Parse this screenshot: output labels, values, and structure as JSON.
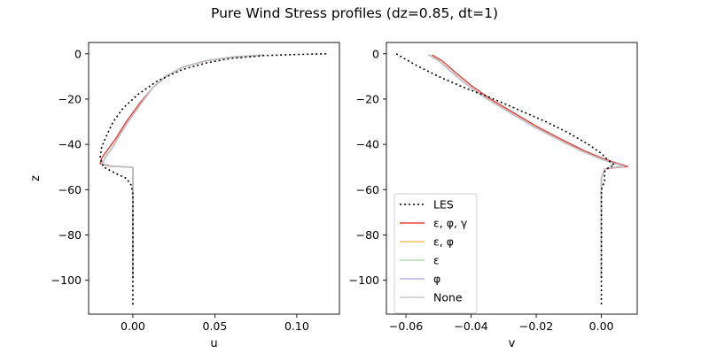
{
  "figure": {
    "title": "Pure Wind Stress profiles (dz=0.85, dt=1)"
  },
  "series_styles": [
    {
      "name": "LES",
      "color": "#000000",
      "dash": "2,3",
      "width": 1.6,
      "opacity": 1
    },
    {
      "name": "ε, φ, γ",
      "color": "#e8302a",
      "dash": "",
      "width": 1.5,
      "opacity": 0.9
    },
    {
      "name": "ε, φ",
      "color": "#f5a623",
      "dash": "",
      "width": 1.5,
      "opacity": 0.7
    },
    {
      "name": "ε",
      "color": "#7bc47b",
      "dash": "",
      "width": 1.5,
      "opacity": 0.6
    },
    {
      "name": "φ",
      "color": "#9b8fd8",
      "dash": "",
      "width": 1.5,
      "opacity": 0.7
    },
    {
      "name": "None",
      "color": "#c8c8c8",
      "dash": "",
      "width": 1.8,
      "opacity": 0.8
    }
  ],
  "chart_data": [
    {
      "type": "line",
      "title": "",
      "xlabel": "u",
      "ylabel": "z",
      "xlim": [
        -0.027,
        0.126
      ],
      "ylim": [
        -115,
        5
      ],
      "xticks": [
        0.0,
        0.05,
        0.1
      ],
      "xtick_labels": [
        "0.00",
        "0.05",
        "0.10"
      ],
      "yticks": [
        0,
        -20,
        -40,
        -60,
        -80,
        -100
      ],
      "ytick_labels": [
        "0",
        "−20",
        "−40",
        "−60",
        "−80",
        "−100"
      ],
      "legend": null,
      "series": [
        {
          "name": "LES",
          "points": [
            [
              0.118,
              0
            ],
            [
              0.1,
              -0.3
            ],
            [
              0.08,
              -0.8
            ],
            [
              0.06,
              -2
            ],
            [
              0.045,
              -4
            ],
            [
              0.03,
              -7
            ],
            [
              0.015,
              -12
            ],
            [
              0.003,
              -18
            ],
            [
              -0.006,
              -24
            ],
            [
              -0.012,
              -30
            ],
            [
              -0.016,
              -36
            ],
            [
              -0.019,
              -41
            ],
            [
              -0.02,
              -46
            ],
            [
              -0.018,
              -50
            ],
            [
              -0.01,
              -53
            ],
            [
              -0.004,
              -55
            ],
            [
              -0.001,
              -58
            ],
            [
              0,
              -62
            ],
            [
              0,
              -80
            ],
            [
              0,
              -100
            ],
            [
              0,
              -111
            ]
          ]
        },
        {
          "name": "ε, φ, γ",
          "points": [
            [
              0.08,
              -0.5
            ],
            [
              0.06,
              -1.5
            ],
            [
              0.045,
              -3
            ],
            [
              0.03,
              -6
            ],
            [
              0.02,
              -10
            ],
            [
              0.012,
              -15
            ],
            [
              0.004,
              -22
            ],
            [
              -0.004,
              -30
            ],
            [
              -0.01,
              -37
            ],
            [
              -0.015,
              -42
            ],
            [
              -0.019,
              -46
            ],
            [
              -0.02,
              -48.5
            ],
            [
              -0.014,
              -49.6
            ],
            [
              -0.003,
              -50
            ],
            [
              0,
              -50.2
            ],
            [
              0,
              -70
            ],
            [
              0,
              -99
            ]
          ]
        },
        {
          "name": "ε, φ",
          "points": [
            [
              0.08,
              -0.5
            ],
            [
              0.06,
              -1.5
            ],
            [
              0.045,
              -3
            ],
            [
              0.03,
              -6
            ],
            [
              0.02,
              -10
            ],
            [
              0.012,
              -15
            ],
            [
              0.005,
              -22
            ],
            [
              -0.003,
              -30
            ],
            [
              -0.009,
              -37
            ],
            [
              -0.013,
              -42
            ],
            [
              -0.017,
              -46
            ],
            [
              -0.019,
              -48.5
            ],
            [
              -0.013,
              -49.6
            ],
            [
              -0.003,
              -50
            ],
            [
              0,
              -50.2
            ],
            [
              0,
              -70
            ],
            [
              0,
              -99
            ]
          ]
        },
        {
          "name": "ε",
          "points": [
            [
              0.08,
              -0.5
            ],
            [
              0.06,
              -1.5
            ],
            [
              0.045,
              -3
            ],
            [
              0.03,
              -6
            ],
            [
              0.02,
              -10
            ],
            [
              0.012,
              -15
            ],
            [
              0.005,
              -22
            ],
            [
              -0.003,
              -30
            ],
            [
              -0.009,
              -37
            ],
            [
              -0.013,
              -42
            ],
            [
              -0.017,
              -46
            ],
            [
              -0.019,
              -48.5
            ],
            [
              -0.013,
              -49.6
            ],
            [
              -0.003,
              -50
            ],
            [
              0,
              -50.2
            ],
            [
              0,
              -70
            ],
            [
              0,
              -99
            ]
          ]
        },
        {
          "name": "φ",
          "points": [
            [
              0.08,
              -0.5
            ],
            [
              0.06,
              -1.5
            ],
            [
              0.045,
              -3
            ],
            [
              0.03,
              -6
            ],
            [
              0.02,
              -10
            ],
            [
              0.012,
              -15
            ],
            [
              0.005,
              -22
            ],
            [
              -0.003,
              -30
            ],
            [
              -0.009,
              -37
            ],
            [
              -0.013,
              -42
            ],
            [
              -0.017,
              -46
            ],
            [
              -0.019,
              -48.5
            ],
            [
              -0.013,
              -49.6
            ],
            [
              -0.003,
              -50
            ],
            [
              0,
              -50.2
            ],
            [
              0,
              -70
            ],
            [
              0,
              -99
            ]
          ]
        },
        {
          "name": "None",
          "points": [
            [
              0.08,
              -0.5
            ],
            [
              0.06,
              -1.5
            ],
            [
              0.045,
              -3
            ],
            [
              0.03,
              -6
            ],
            [
              0.02,
              -10
            ],
            [
              0.012,
              -15
            ],
            [
              0.005,
              -22
            ],
            [
              -0.003,
              -30
            ],
            [
              -0.009,
              -37
            ],
            [
              -0.013,
              -42
            ],
            [
              -0.017,
              -46
            ],
            [
              -0.019,
              -48.5
            ],
            [
              -0.013,
              -49.6
            ],
            [
              -0.003,
              -50
            ],
            [
              0,
              -50.2
            ],
            [
              0,
              -70
            ],
            [
              0,
              -99
            ]
          ]
        }
      ]
    },
    {
      "type": "line",
      "title": "",
      "xlabel": "v",
      "ylabel": "",
      "xlim": [
        -0.066,
        0.011
      ],
      "ylim": [
        -115,
        5
      ],
      "xticks": [
        -0.06,
        -0.04,
        -0.02,
        0.0
      ],
      "xtick_labels": [
        "−0.06",
        "−0.04",
        "−0.02",
        "0.00"
      ],
      "yticks": [
        0,
        -20,
        -40,
        -60,
        -80,
        -100
      ],
      "ytick_labels": [
        "0",
        "−20",
        "−40",
        "−60",
        "−80",
        "−100"
      ],
      "legend": "lower-left",
      "series": [
        {
          "name": "LES",
          "points": [
            [
              -0.063,
              0
            ],
            [
              -0.057,
              -5
            ],
            [
              -0.05,
              -10
            ],
            [
              -0.042,
              -15
            ],
            [
              -0.033,
              -20
            ],
            [
              -0.025,
              -25
            ],
            [
              -0.017,
              -30
            ],
            [
              -0.01,
              -35
            ],
            [
              -0.004,
              -40
            ],
            [
              0,
              -44
            ],
            [
              0.002,
              -47
            ],
            [
              0.004,
              -49
            ],
            [
              0.002,
              -50.5
            ],
            [
              0.001,
              -52
            ],
            [
              0.001,
              -56
            ],
            [
              0,
              -60
            ],
            [
              0,
              -80
            ],
            [
              0,
              -100
            ],
            [
              0,
              -111
            ]
          ]
        },
        {
          "name": "ε, φ, γ",
          "points": [
            [
              -0.052,
              -0.5
            ],
            [
              -0.049,
              -3
            ],
            [
              -0.045,
              -8
            ],
            [
              -0.04,
              -14
            ],
            [
              -0.034,
              -20
            ],
            [
              -0.027,
              -26
            ],
            [
              -0.02,
              -32
            ],
            [
              -0.012,
              -38
            ],
            [
              -0.005,
              -43
            ],
            [
              0,
              -46
            ],
            [
              0.004,
              -48
            ],
            [
              0.007,
              -49.3
            ],
            [
              0.008,
              -49.8
            ],
            [
              0.004,
              -50.3
            ],
            [
              0.001,
              -51
            ],
            [
              0,
              -55
            ],
            [
              0,
              -99
            ]
          ]
        },
        {
          "name": "ε, φ",
          "points": [
            [
              -0.053,
              -0.5
            ],
            [
              -0.05,
              -3
            ],
            [
              -0.046,
              -8
            ],
            [
              -0.041,
              -14
            ],
            [
              -0.035,
              -20
            ],
            [
              -0.028,
              -26
            ],
            [
              -0.021,
              -32
            ],
            [
              -0.013,
              -38
            ],
            [
              -0.006,
              -43
            ],
            [
              -0.001,
              -46
            ],
            [
              0.003,
              -48
            ],
            [
              0.006,
              -49.3
            ],
            [
              0.007,
              -49.8
            ],
            [
              0.003,
              -50.3
            ],
            [
              0.001,
              -51
            ],
            [
              0,
              -55
            ],
            [
              0,
              -99
            ]
          ]
        },
        {
          "name": "ε",
          "points": [
            [
              -0.053,
              -0.5
            ],
            [
              -0.05,
              -3
            ],
            [
              -0.046,
              -8
            ],
            [
              -0.041,
              -14
            ],
            [
              -0.035,
              -20
            ],
            [
              -0.028,
              -26
            ],
            [
              -0.021,
              -32
            ],
            [
              -0.013,
              -38
            ],
            [
              -0.006,
              -43
            ],
            [
              -0.001,
              -46
            ],
            [
              0.003,
              -48
            ],
            [
              0.006,
              -49.3
            ],
            [
              0.007,
              -49.8
            ],
            [
              0.003,
              -50.3
            ],
            [
              0.001,
              -51
            ],
            [
              0,
              -55
            ],
            [
              0,
              -99
            ]
          ]
        },
        {
          "name": "φ",
          "points": [
            [
              -0.053,
              -0.5
            ],
            [
              -0.05,
              -3
            ],
            [
              -0.046,
              -8
            ],
            [
              -0.041,
              -14
            ],
            [
              -0.035,
              -20
            ],
            [
              -0.028,
              -26
            ],
            [
              -0.021,
              -32
            ],
            [
              -0.013,
              -38
            ],
            [
              -0.006,
              -43
            ],
            [
              -0.001,
              -46
            ],
            [
              0.003,
              -48
            ],
            [
              0.006,
              -49.3
            ],
            [
              0.007,
              -49.8
            ],
            [
              0.003,
              -50.3
            ],
            [
              0.001,
              -51
            ],
            [
              0,
              -55
            ],
            [
              0,
              -99
            ]
          ]
        },
        {
          "name": "None",
          "points": [
            [
              -0.053,
              -0.5
            ],
            [
              -0.05,
              -3
            ],
            [
              -0.046,
              -8
            ],
            [
              -0.041,
              -14
            ],
            [
              -0.035,
              -20
            ],
            [
              -0.028,
              -26
            ],
            [
              -0.021,
              -32
            ],
            [
              -0.013,
              -38
            ],
            [
              -0.006,
              -43
            ],
            [
              -0.001,
              -46
            ],
            [
              0.003,
              -48
            ],
            [
              0.006,
              -49.3
            ],
            [
              0.007,
              -49.8
            ],
            [
              0.003,
              -50.3
            ],
            [
              0.001,
              -51
            ],
            [
              0,
              -55
            ],
            [
              0,
              -99
            ]
          ]
        }
      ]
    }
  ]
}
